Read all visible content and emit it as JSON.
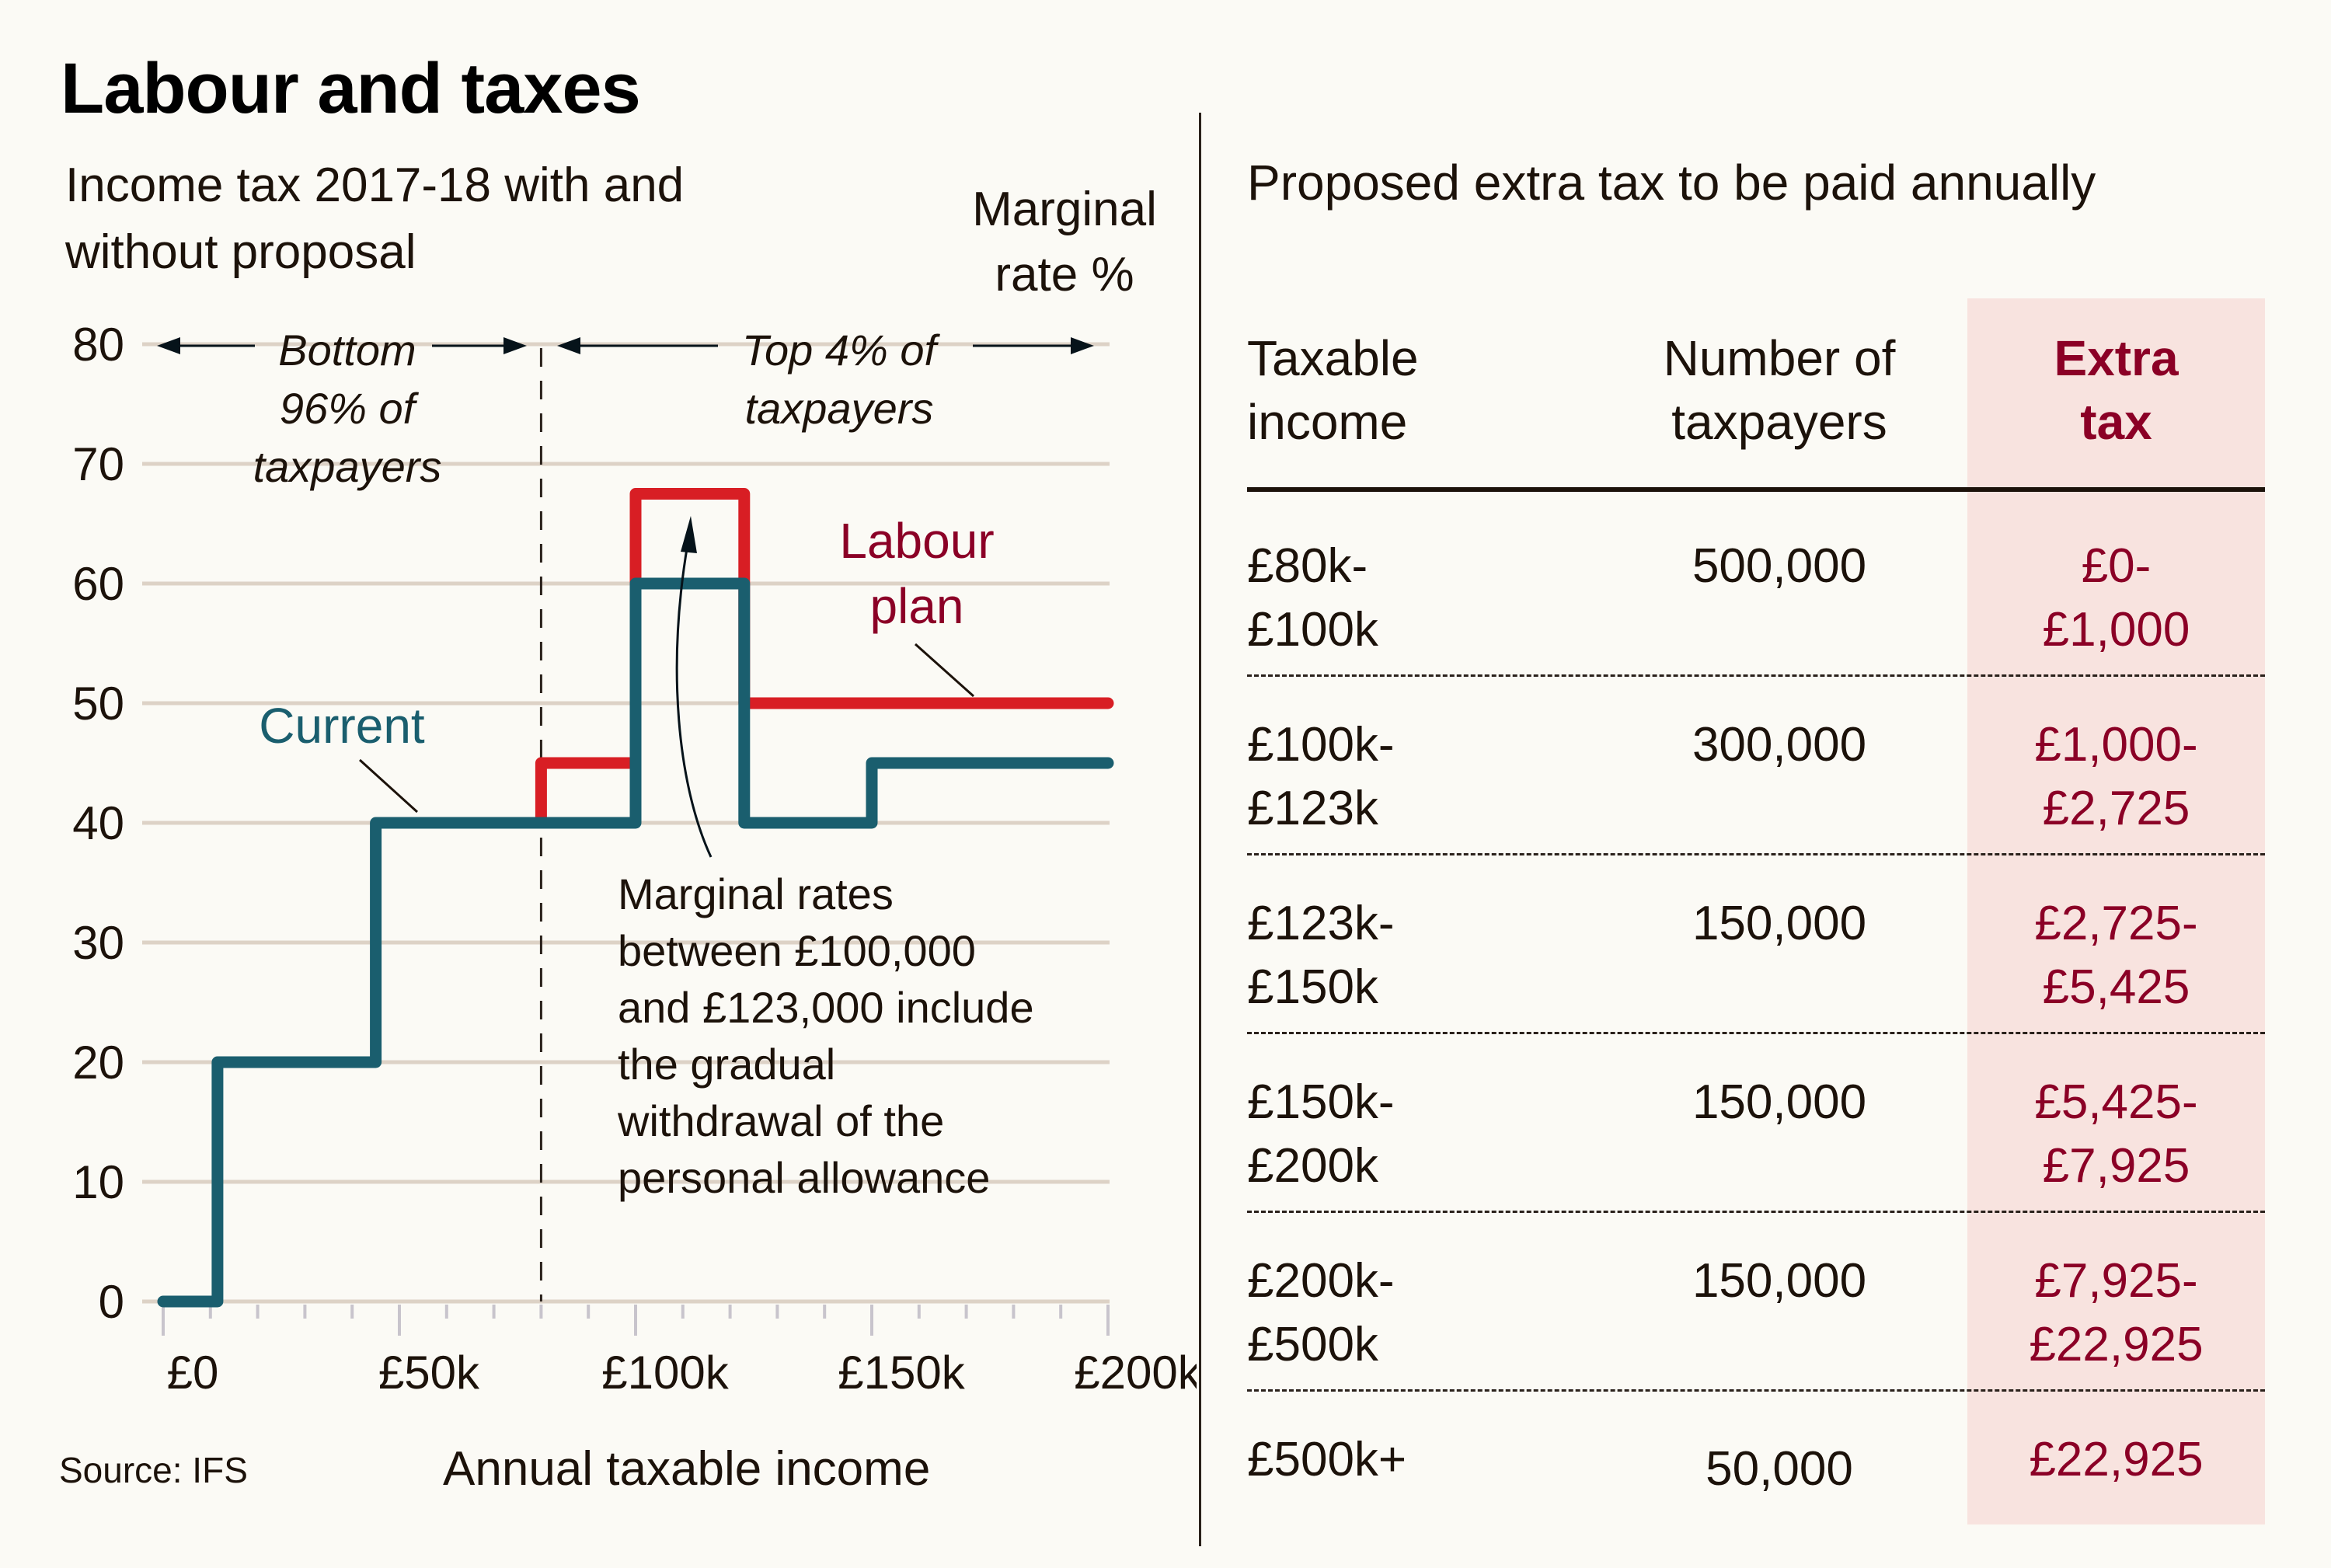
{
  "title": "Labour and taxes",
  "left_panel": {
    "subtitle": "Income tax 2017-18 with and without proposal",
    "yaxis_label": "Marginal rate %",
    "xaxis_label": "Annual taxable income",
    "source": "Source: IFS"
  },
  "chart_data": {
    "type": "line",
    "step": true,
    "title": "Income tax 2017-18 with and without proposal",
    "xlabel": "Annual taxable income",
    "ylabel": "Marginal rate %",
    "xlim": [
      0,
      200
    ],
    "x_units": "£k",
    "ylim": [
      0,
      80
    ],
    "yticks": [
      0,
      10,
      20,
      30,
      40,
      50,
      60,
      70,
      80
    ],
    "ytick_labels": [
      "0",
      "10",
      "20",
      "30",
      "40",
      "50",
      "60",
      "70",
      "80"
    ],
    "xticks": [
      0,
      50,
      100,
      150,
      200
    ],
    "xtick_labels": [
      "£0",
      "£50k",
      "£100k",
      "£150k",
      "£200k"
    ],
    "minor_xtick_step": 10,
    "grid": true,
    "series": [
      {
        "name": "Labour plan",
        "label": "Labour plan",
        "color": "#d81e24",
        "label_color": "#8b0026",
        "points": [
          [
            80,
            40
          ],
          [
            80,
            45
          ],
          [
            100,
            45
          ],
          [
            100,
            67.5
          ],
          [
            123,
            67.5
          ],
          [
            123,
            50
          ],
          [
            200,
            50
          ]
        ]
      },
      {
        "name": "Current",
        "label": "Current",
        "color": "#1a5e6e",
        "label_color": "#1a5e6e",
        "points": [
          [
            0,
            0
          ],
          [
            11.5,
            0
          ],
          [
            11.5,
            20
          ],
          [
            45,
            20
          ],
          [
            45,
            40
          ],
          [
            100,
            40
          ],
          [
            100,
            60
          ],
          [
            123,
            60
          ],
          [
            123,
            40
          ],
          [
            150,
            40
          ],
          [
            150,
            45
          ],
          [
            200,
            45
          ]
        ]
      }
    ],
    "annotations": {
      "threshold_x": 80,
      "bottom_group": [
        "Bottom",
        "96% of",
        "taxpayers"
      ],
      "top_group": [
        "Top 4% of",
        "taxpayers"
      ],
      "note_lines": [
        "Marginal rates",
        "between £100,000",
        "and £123,000 include",
        "the gradual",
        "withdrawal of the",
        "personal allowance"
      ]
    }
  },
  "right_panel": {
    "title": "Proposed extra tax to be paid annually",
    "headers": {
      "income": [
        "Taxable",
        "income"
      ],
      "count": [
        "Number of",
        "taxpayers"
      ],
      "extra": [
        "Extra",
        "tax"
      ]
    },
    "rows": [
      {
        "income": [
          "£80k-",
          "£100k"
        ],
        "count": "500,000",
        "extra": [
          "£0-",
          "£1,000"
        ]
      },
      {
        "income": [
          "£100k-",
          "£123k"
        ],
        "count": "300,000",
        "extra": [
          "£1,000-",
          "£2,725"
        ]
      },
      {
        "income": [
          "£123k-",
          "£150k"
        ],
        "count": "150,000",
        "extra": [
          "£2,725-",
          "£5,425"
        ]
      },
      {
        "income": [
          "£150k-",
          "£200k"
        ],
        "count": "150,000",
        "extra": [
          "£5,425-",
          "£7,925"
        ]
      },
      {
        "income": [
          "£200k-",
          "£500k"
        ],
        "count": "150,000",
        "extra": [
          "£7,925-",
          "£22,925"
        ]
      },
      {
        "income": [
          "£500k+"
        ],
        "count": "50,000",
        "extra": [
          "£22,925"
        ]
      }
    ],
    "highlight_color": "#f8e3df",
    "accent_color": "#8b0026"
  }
}
